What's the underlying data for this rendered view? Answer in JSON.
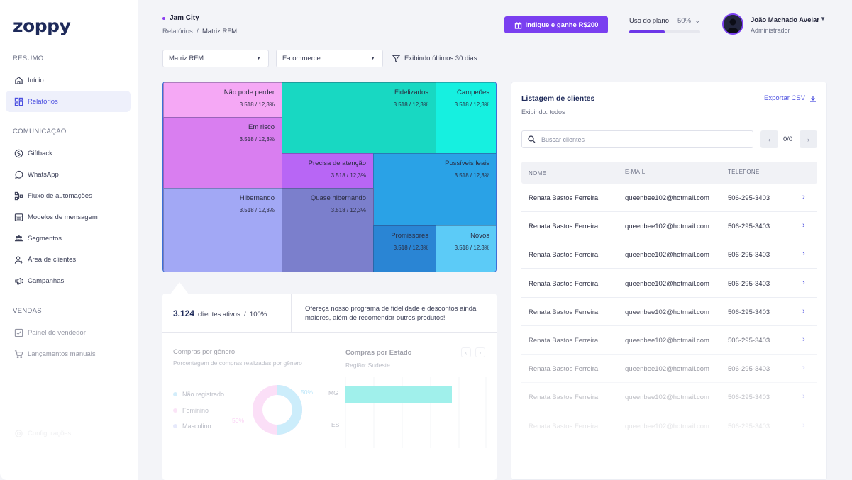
{
  "brand": {
    "logo": "zoppy"
  },
  "sidebar": {
    "sections": [
      {
        "title": "RESUMO",
        "items": [
          {
            "label": "Início",
            "icon": "home-icon"
          },
          {
            "label": "Relatórios",
            "icon": "reports-icon",
            "active": true
          }
        ]
      },
      {
        "title": "COMUNICAÇÃO",
        "items": [
          {
            "label": "Giftback",
            "icon": "dollar-icon"
          },
          {
            "label": "WhatsApp",
            "icon": "chat-icon"
          },
          {
            "label": "Fluxo de automações",
            "icon": "flow-icon"
          },
          {
            "label": "Modelos de mensagem",
            "icon": "template-icon"
          },
          {
            "label": "Segmentos",
            "icon": "users-icon"
          },
          {
            "label": "Área de clientes",
            "icon": "user-add-icon"
          },
          {
            "label": "Campanhas",
            "icon": "megaphone-icon"
          }
        ]
      },
      {
        "title": "VENDAS",
        "items": [
          {
            "label": "Painel do vendedor",
            "icon": "check-square-icon"
          },
          {
            "label": "Lançamentos manuais",
            "icon": "cart-icon"
          }
        ]
      }
    ],
    "footer_item": "Configurações"
  },
  "header": {
    "store": "Jam City",
    "breadcrumb": {
      "parent": "Relatórios",
      "sep": "/",
      "current": "Matriz RFM"
    },
    "cta_label": "Indique e ganhe R$200",
    "plan_label": "Uso do plano",
    "plan_value": "50%",
    "plan_fraction": 0.5,
    "user_name": "João Machado Avelar",
    "user_role": "Administrador"
  },
  "filters": {
    "matrix": "Matriz RFM",
    "channel": "E-commerce",
    "period": "Exibindo últimos 30 dias"
  },
  "treemap": {
    "segments": [
      {
        "key": "nao-pode-perder",
        "label": "Não pode perder",
        "value": "3.518 / 12,3%",
        "color": "#f5a8f5"
      },
      {
        "key": "em-risco",
        "label": "Em risco",
        "value": "3.518 / 12,3%",
        "color": "#d97ef0"
      },
      {
        "key": "fidelizados",
        "label": "Fidelizados",
        "value": "3.518 / 12,3%",
        "color": "#18d8c2"
      },
      {
        "key": "campeoes",
        "label": "Campeões",
        "value": "3.518 / 12,3%",
        "color": "#16f0e0"
      },
      {
        "key": "precisa-atencao",
        "label": "Precisa de atenção",
        "value": "3.518 / 12,3%",
        "color": "#b866f5"
      },
      {
        "key": "possiveis-leais",
        "label": "Possíveis leais",
        "value": "3.518 / 12,3%",
        "color": "#2aa2e6"
      },
      {
        "key": "hibernando",
        "label": "Hibernando",
        "value": "3.518 / 12,3%",
        "color": "#a2a8f5"
      },
      {
        "key": "quase-hibernando",
        "label": "Quase hibernando",
        "value": "3.518 / 12,3%",
        "color": "#7b7fcc"
      },
      {
        "key": "promissores",
        "label": "Promissores",
        "value": "3.518 / 12,3%",
        "color": "#2a85d4"
      },
      {
        "key": "novos",
        "label": "Novos",
        "value": "3.518 / 12,3%",
        "color": "#5ccbf7"
      }
    ]
  },
  "summary": {
    "active_count": "3.124",
    "active_label": "clientes ativos",
    "sep": "/",
    "active_pct": "100%",
    "tip": "Ofereça nosso programa de fidelidade e descontos ainda maiores, além de recomendar outros produtos!"
  },
  "gender_chart": {
    "title": "Compras por gênero",
    "subtitle": "Porcentagem de compras realizadas por gênero",
    "legend": [
      "Não registrado",
      "Feminino",
      "Masculino"
    ],
    "label_a": "50%",
    "label_b": "50%"
  },
  "state_chart": {
    "title": "Compras por Estado",
    "subtitle": "Região: Sudeste",
    "states": [
      "MG",
      "ES"
    ],
    "prev": "‹",
    "next": "›"
  },
  "clients": {
    "title": "Listagem de clientes",
    "subtitle": "Exibindo: todos",
    "export_label": "Exportar CSV",
    "search_placeholder": "Buscar clientes",
    "pagination": "0/0",
    "columns": [
      "NOME",
      "E-MAIL",
      "TELEFONE"
    ],
    "rows": [
      {
        "name": "Renata Bastos Ferreira",
        "email": "queenbee102@hotmail.com",
        "phone": "506-295-3403"
      },
      {
        "name": "Renata Bastos Ferreira",
        "email": "queenbee102@hotmail.com",
        "phone": "506-295-3403"
      },
      {
        "name": "Renata Bastos Ferreira",
        "email": "queenbee102@hotmail.com",
        "phone": "506-295-3403"
      },
      {
        "name": "Renata Bastos Ferreira",
        "email": "queenbee102@hotmail.com",
        "phone": "506-295-3403"
      },
      {
        "name": "Renata Bastos Ferreira",
        "email": "queenbee102@hotmail.com",
        "phone": "506-295-3403"
      },
      {
        "name": "Renata Bastos Ferreira",
        "email": "queenbee102@hotmail.com",
        "phone": "506-295-3403"
      },
      {
        "name": "Renata Bastos Ferreira",
        "email": "queenbee102@hotmail.com",
        "phone": "506-295-3403"
      },
      {
        "name": "Renata Bastos Ferreira",
        "email": "queenbee102@hotmail.com",
        "phone": "506-295-3403"
      },
      {
        "name": "Renata Bastos Ferreira",
        "email": "queenbee102@hotmail.com",
        "phone": "506-295-3403"
      }
    ]
  }
}
